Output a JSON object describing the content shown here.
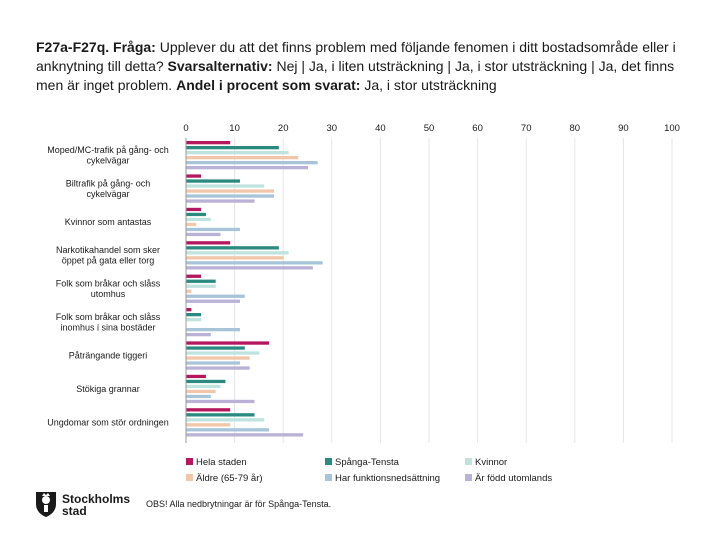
{
  "header": {
    "question_code": "F27a-F27q.",
    "question_label": "Fråga:",
    "question_text": "Upplever du att det finns problem med följande fenomen i ditt bostadsområde eller i anknytning till detta?",
    "alternatives_label": "Svarsalternativ:",
    "alternatives_text": "Nej | Ja, i liten utsträckning | Ja, i stor utsträckning | Ja, det finns men är inget problem.",
    "share_label": "Andel i procent som svarat:",
    "share_text": "Ja, i stor utsträckning"
  },
  "footer": {
    "logo_line1": "Stockholms",
    "logo_line2": "stad",
    "note": "OBS! Alla nedbrytningar är för Spånga-Tensta."
  },
  "colors": {
    "hela_staden": "#b5175f",
    "spanga_tensta": "#2a8a80",
    "kvinnor": "#bfe3de",
    "aldre": "#f2c6a8",
    "funktion": "#a7c4d8",
    "utomlands": "#b9b1d6"
  },
  "chart_data": {
    "type": "bar",
    "orientation": "horizontal",
    "title": "",
    "xlim": [
      0,
      100
    ],
    "xticks": [
      0,
      10,
      20,
      30,
      40,
      50,
      60,
      70,
      80,
      90,
      100
    ],
    "grid": true,
    "legend_position": "bottom",
    "categories": [
      [
        "Moped/MC-trafik på gång- och",
        "cykelvägar"
      ],
      [
        "Biltrafik på gång- och",
        "cykelvägar"
      ],
      [
        "Kvinnor som antastas"
      ],
      [
        "Narkotikahandel som sker",
        "öppet på gata eller torg"
      ],
      [
        "Folk som bråkar och slåss",
        "utomhus"
      ],
      [
        "Folk som bråkar och slåss",
        "inomhus i sina bostäder"
      ],
      [
        "Påträngande tiggeri"
      ],
      [
        "Stökiga grannar"
      ],
      [
        "Ungdomar som stör ordningen"
      ]
    ],
    "series": [
      {
        "name": "Hela staden",
        "color_key": "hela_staden",
        "values": [
          9,
          3,
          3,
          9,
          3,
          1,
          17,
          4,
          9
        ]
      },
      {
        "name": "Spånga-Tensta",
        "color_key": "spanga_tensta",
        "values": [
          19,
          11,
          4,
          19,
          6,
          3,
          12,
          8,
          14
        ]
      },
      {
        "name": "Kvinnor",
        "color_key": "kvinnor",
        "values": [
          21,
          16,
          5,
          21,
          6,
          3,
          15,
          7,
          16
        ]
      },
      {
        "name": "Äldre (65-79 år)",
        "color_key": "aldre",
        "values": [
          23,
          18,
          2,
          20,
          1,
          0,
          13,
          6,
          9
        ]
      },
      {
        "name": "Har funktionsnedsättning",
        "color_key": "funktion",
        "values": [
          27,
          18,
          11,
          28,
          12,
          11,
          11,
          5,
          17
        ]
      },
      {
        "name": "Är född utomlands",
        "color_key": "utomlands",
        "values": [
          25,
          14,
          7,
          26,
          11,
          5,
          13,
          14,
          24
        ]
      }
    ]
  }
}
